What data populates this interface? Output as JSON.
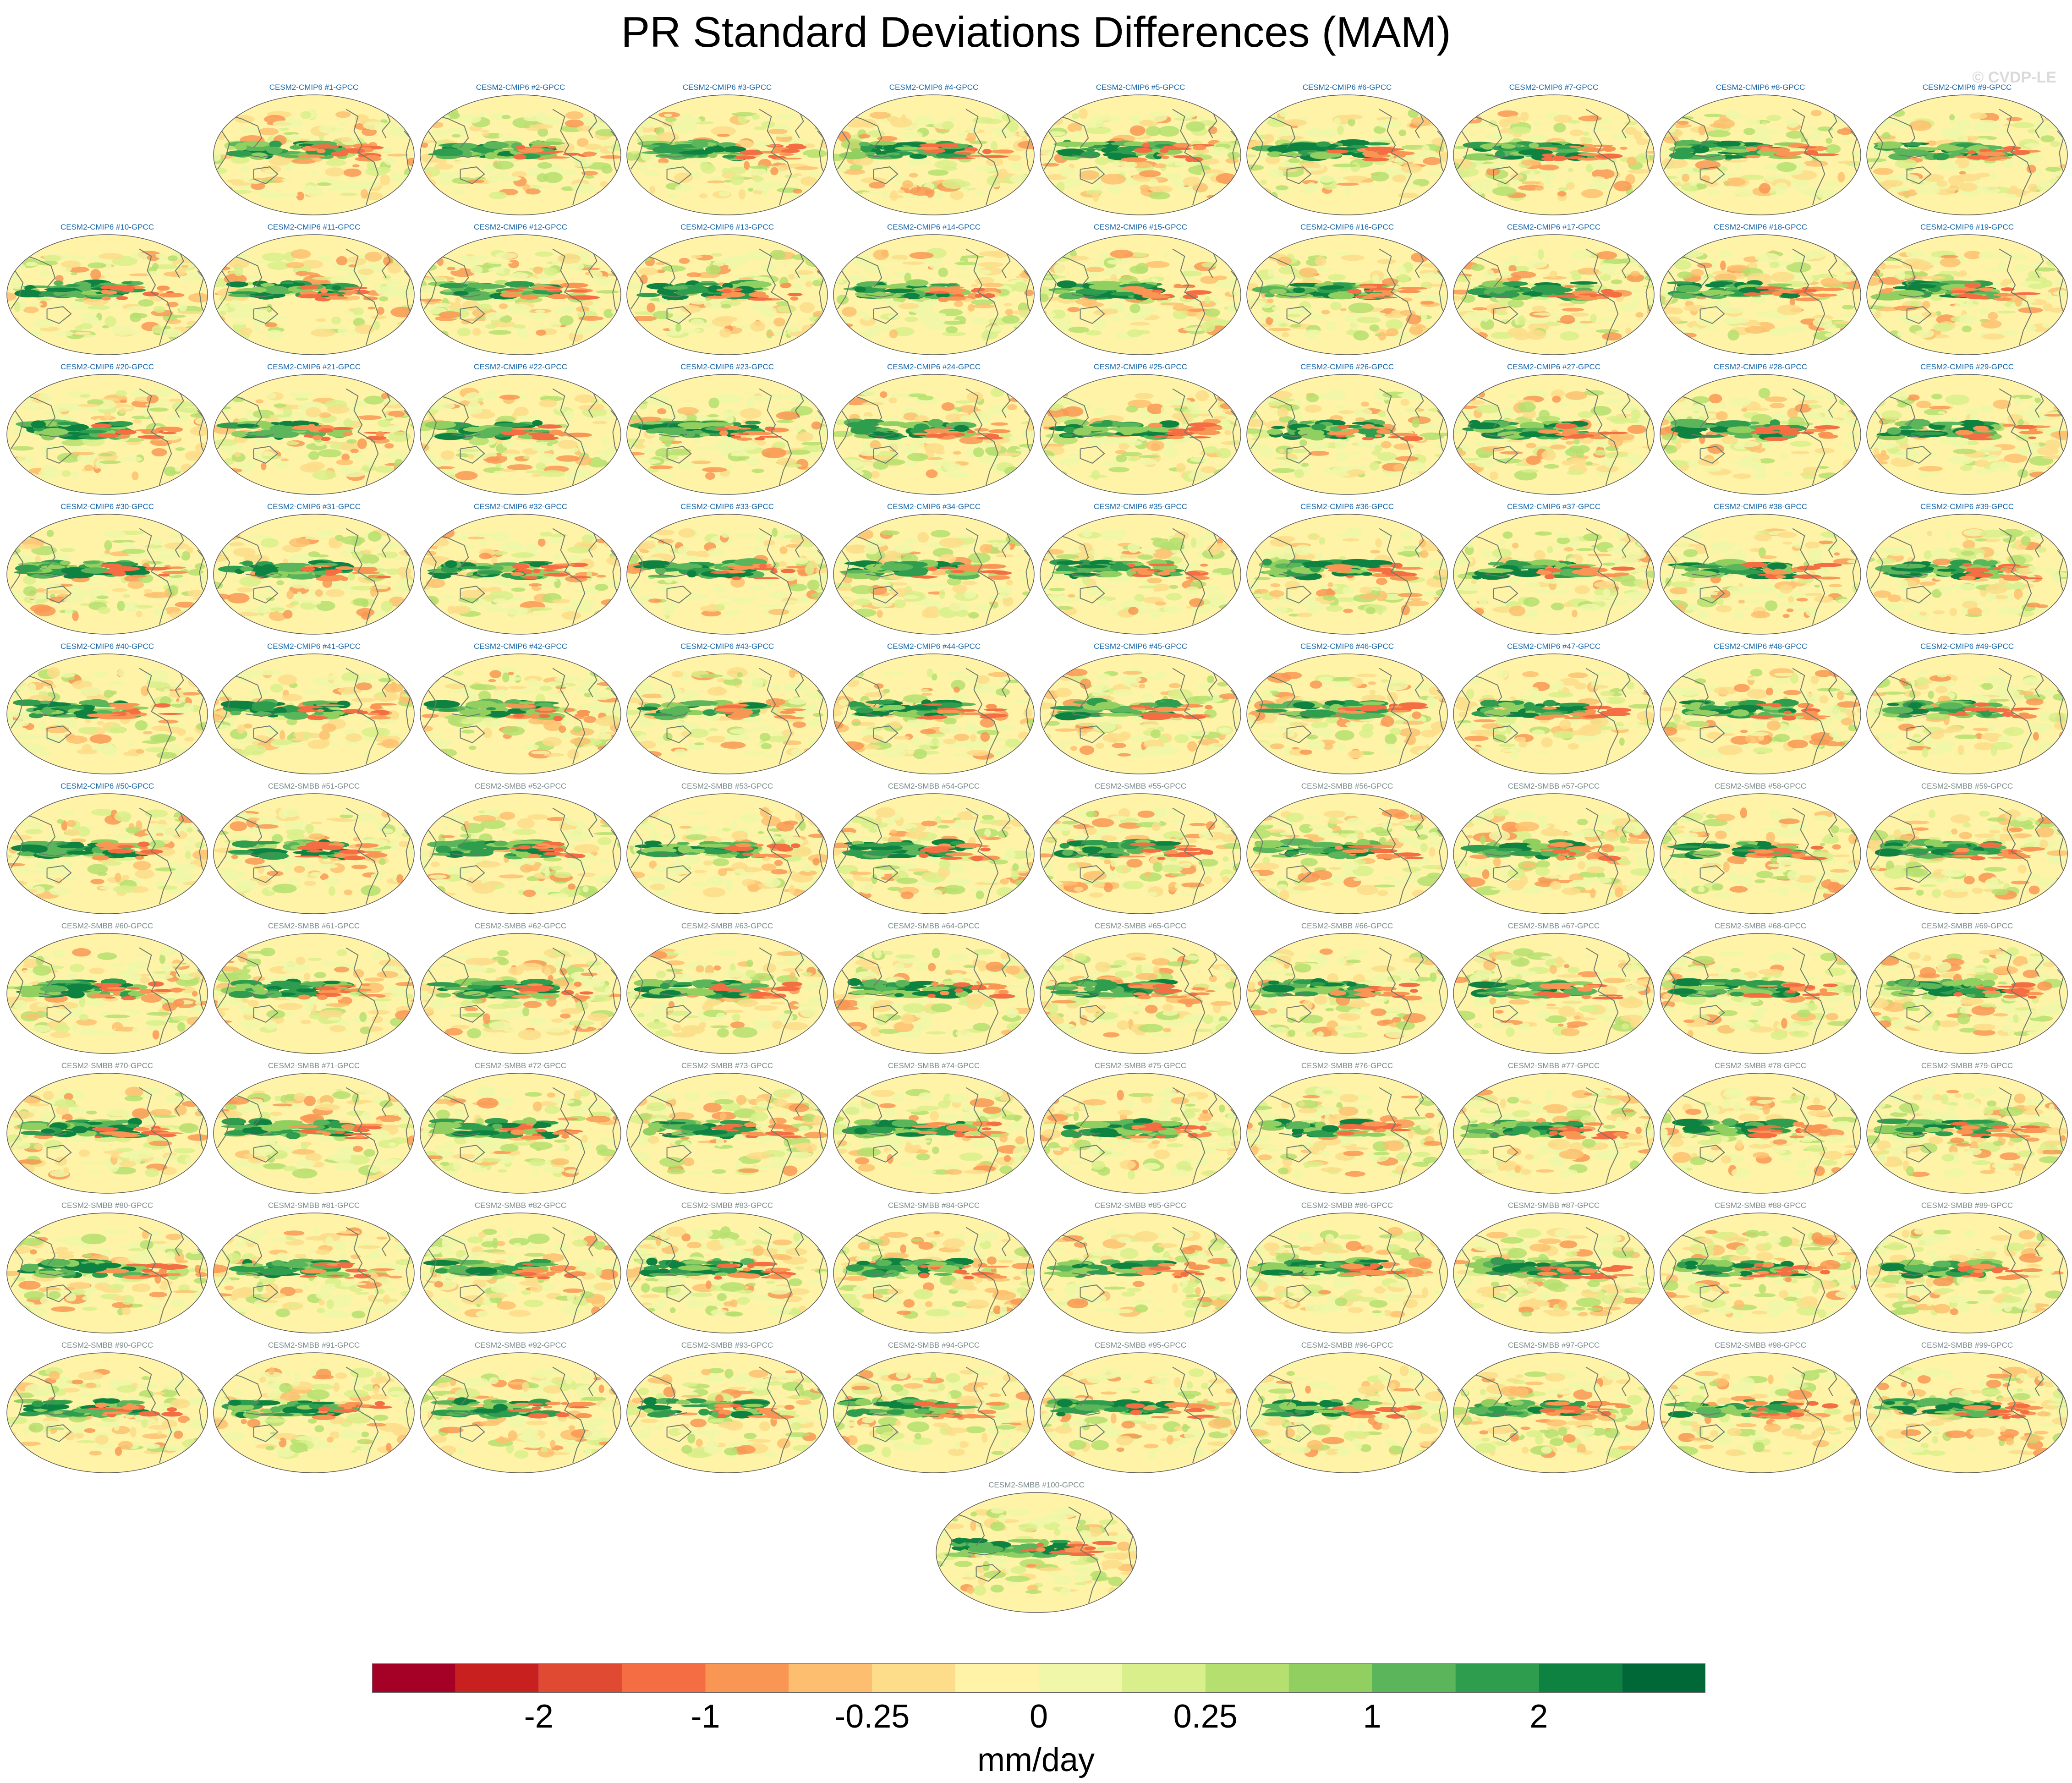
{
  "chart_data": {
    "type": "heatmap",
    "title": "PR Standard Deviations Differences (MAM)",
    "watermark": "© CVDP-LE",
    "projection": "global map (Robinson-like ellipse)",
    "panels": [
      {
        "label": "CESM2-CMIP6 #1-GPCC",
        "group": "CMIP6"
      },
      {
        "label": "CESM2-CMIP6 #2-GPCC",
        "group": "CMIP6"
      },
      {
        "label": "CESM2-CMIP6 #3-GPCC",
        "group": "CMIP6"
      },
      {
        "label": "CESM2-CMIP6 #4-GPCC",
        "group": "CMIP6"
      },
      {
        "label": "CESM2-CMIP6 #5-GPCC",
        "group": "CMIP6"
      },
      {
        "label": "CESM2-CMIP6 #6-GPCC",
        "group": "CMIP6"
      },
      {
        "label": "CESM2-CMIP6 #7-GPCC",
        "group": "CMIP6"
      },
      {
        "label": "CESM2-CMIP6 #8-GPCC",
        "group": "CMIP6"
      },
      {
        "label": "CESM2-CMIP6 #9-GPCC",
        "group": "CMIP6"
      },
      {
        "label": "CESM2-CMIP6 #10-GPCC",
        "group": "CMIP6"
      },
      {
        "label": "CESM2-CMIP6 #11-GPCC",
        "group": "CMIP6"
      },
      {
        "label": "CESM2-CMIP6 #12-GPCC",
        "group": "CMIP6"
      },
      {
        "label": "CESM2-CMIP6 #13-GPCC",
        "group": "CMIP6"
      },
      {
        "label": "CESM2-CMIP6 #14-GPCC",
        "group": "CMIP6"
      },
      {
        "label": "CESM2-CMIP6 #15-GPCC",
        "group": "CMIP6"
      },
      {
        "label": "CESM2-CMIP6 #16-GPCC",
        "group": "CMIP6"
      },
      {
        "label": "CESM2-CMIP6 #17-GPCC",
        "group": "CMIP6"
      },
      {
        "label": "CESM2-CMIP6 #18-GPCC",
        "group": "CMIP6"
      },
      {
        "label": "CESM2-CMIP6 #19-GPCC",
        "group": "CMIP6"
      },
      {
        "label": "CESM2-CMIP6 #20-GPCC",
        "group": "CMIP6"
      },
      {
        "label": "CESM2-CMIP6 #21-GPCC",
        "group": "CMIP6"
      },
      {
        "label": "CESM2-CMIP6 #22-GPCC",
        "group": "CMIP6"
      },
      {
        "label": "CESM2-CMIP6 #23-GPCC",
        "group": "CMIP6"
      },
      {
        "label": "CESM2-CMIP6 #24-GPCC",
        "group": "CMIP6"
      },
      {
        "label": "CESM2-CMIP6 #25-GPCC",
        "group": "CMIP6"
      },
      {
        "label": "CESM2-CMIP6 #26-GPCC",
        "group": "CMIP6"
      },
      {
        "label": "CESM2-CMIP6 #27-GPCC",
        "group": "CMIP6"
      },
      {
        "label": "CESM2-CMIP6 #28-GPCC",
        "group": "CMIP6"
      },
      {
        "label": "CESM2-CMIP6 #29-GPCC",
        "group": "CMIP6"
      },
      {
        "label": "CESM2-CMIP6 #30-GPCC",
        "group": "CMIP6"
      },
      {
        "label": "CESM2-CMIP6 #31-GPCC",
        "group": "CMIP6"
      },
      {
        "label": "CESM2-CMIP6 #32-GPCC",
        "group": "CMIP6"
      },
      {
        "label": "CESM2-CMIP6 #33-GPCC",
        "group": "CMIP6"
      },
      {
        "label": "CESM2-CMIP6 #34-GPCC",
        "group": "CMIP6"
      },
      {
        "label": "CESM2-CMIP6 #35-GPCC",
        "group": "CMIP6"
      },
      {
        "label": "CESM2-CMIP6 #36-GPCC",
        "group": "CMIP6"
      },
      {
        "label": "CESM2-CMIP6 #37-GPCC",
        "group": "CMIP6"
      },
      {
        "label": "CESM2-CMIP6 #38-GPCC",
        "group": "CMIP6"
      },
      {
        "label": "CESM2-CMIP6 #39-GPCC",
        "group": "CMIP6"
      },
      {
        "label": "CESM2-CMIP6 #40-GPCC",
        "group": "CMIP6"
      },
      {
        "label": "CESM2-CMIP6 #41-GPCC",
        "group": "CMIP6"
      },
      {
        "label": "CESM2-CMIP6 #42-GPCC",
        "group": "CMIP6"
      },
      {
        "label": "CESM2-CMIP6 #43-GPCC",
        "group": "CMIP6"
      },
      {
        "label": "CESM2-CMIP6 #44-GPCC",
        "group": "CMIP6"
      },
      {
        "label": "CESM2-CMIP6 #45-GPCC",
        "group": "CMIP6"
      },
      {
        "label": "CESM2-CMIP6 #46-GPCC",
        "group": "CMIP6"
      },
      {
        "label": "CESM2-CMIP6 #47-GPCC",
        "group": "CMIP6"
      },
      {
        "label": "CESM2-CMIP6 #48-GPCC",
        "group": "CMIP6"
      },
      {
        "label": "CESM2-CMIP6 #49-GPCC",
        "group": "CMIP6"
      },
      {
        "label": "CESM2-CMIP6 #50-GPCC",
        "group": "CMIP6"
      },
      {
        "label": "CESM2-SMBB #51-GPCC",
        "group": "SMBB"
      },
      {
        "label": "CESM2-SMBB #52-GPCC",
        "group": "SMBB"
      },
      {
        "label": "CESM2-SMBB #53-GPCC",
        "group": "SMBB"
      },
      {
        "label": "CESM2-SMBB #54-GPCC",
        "group": "SMBB"
      },
      {
        "label": "CESM2-SMBB #55-GPCC",
        "group": "SMBB"
      },
      {
        "label": "CESM2-SMBB #56-GPCC",
        "group": "SMBB"
      },
      {
        "label": "CESM2-SMBB #57-GPCC",
        "group": "SMBB"
      },
      {
        "label": "CESM2-SMBB #58-GPCC",
        "group": "SMBB"
      },
      {
        "label": "CESM2-SMBB #59-GPCC",
        "group": "SMBB"
      },
      {
        "label": "CESM2-SMBB #60-GPCC",
        "group": "SMBB"
      },
      {
        "label": "CESM2-SMBB #61-GPCC",
        "group": "SMBB"
      },
      {
        "label": "CESM2-SMBB #62-GPCC",
        "group": "SMBB"
      },
      {
        "label": "CESM2-SMBB #63-GPCC",
        "group": "SMBB"
      },
      {
        "label": "CESM2-SMBB #64-GPCC",
        "group": "SMBB"
      },
      {
        "label": "CESM2-SMBB #65-GPCC",
        "group": "SMBB"
      },
      {
        "label": "CESM2-SMBB #66-GPCC",
        "group": "SMBB"
      },
      {
        "label": "CESM2-SMBB #67-GPCC",
        "group": "SMBB"
      },
      {
        "label": "CESM2-SMBB #68-GPCC",
        "group": "SMBB"
      },
      {
        "label": "CESM2-SMBB #69-GPCC",
        "group": "SMBB"
      },
      {
        "label": "CESM2-SMBB #70-GPCC",
        "group": "SMBB"
      },
      {
        "label": "CESM2-SMBB #71-GPCC",
        "group": "SMBB"
      },
      {
        "label": "CESM2-SMBB #72-GPCC",
        "group": "SMBB"
      },
      {
        "label": "CESM2-SMBB #73-GPCC",
        "group": "SMBB"
      },
      {
        "label": "CESM2-SMBB #74-GPCC",
        "group": "SMBB"
      },
      {
        "label": "CESM2-SMBB #75-GPCC",
        "group": "SMBB"
      },
      {
        "label": "CESM2-SMBB #76-GPCC",
        "group": "SMBB"
      },
      {
        "label": "CESM2-SMBB #77-GPCC",
        "group": "SMBB"
      },
      {
        "label": "CESM2-SMBB #78-GPCC",
        "group": "SMBB"
      },
      {
        "label": "CESM2-SMBB #79-GPCC",
        "group": "SMBB"
      },
      {
        "label": "CESM2-SMBB #80-GPCC",
        "group": "SMBB"
      },
      {
        "label": "CESM2-SMBB #81-GPCC",
        "group": "SMBB"
      },
      {
        "label": "CESM2-SMBB #82-GPCC",
        "group": "SMBB"
      },
      {
        "label": "CESM2-SMBB #83-GPCC",
        "group": "SMBB"
      },
      {
        "label": "CESM2-SMBB #84-GPCC",
        "group": "SMBB"
      },
      {
        "label": "CESM2-SMBB #85-GPCC",
        "group": "SMBB"
      },
      {
        "label": "CESM2-SMBB #86-GPCC",
        "group": "SMBB"
      },
      {
        "label": "CESM2-SMBB #87-GPCC",
        "group": "SMBB"
      },
      {
        "label": "CESM2-SMBB #88-GPCC",
        "group": "SMBB"
      },
      {
        "label": "CESM2-SMBB #89-GPCC",
        "group": "SMBB"
      },
      {
        "label": "CESM2-SMBB #90-GPCC",
        "group": "SMBB"
      },
      {
        "label": "CESM2-SMBB #91-GPCC",
        "group": "SMBB"
      },
      {
        "label": "CESM2-SMBB #92-GPCC",
        "group": "SMBB"
      },
      {
        "label": "CESM2-SMBB #93-GPCC",
        "group": "SMBB"
      },
      {
        "label": "CESM2-SMBB #94-GPCC",
        "group": "SMBB"
      },
      {
        "label": "CESM2-SMBB #95-GPCC",
        "group": "SMBB"
      },
      {
        "label": "CESM2-SMBB #96-GPCC",
        "group": "SMBB"
      },
      {
        "label": "CESM2-SMBB #97-GPCC",
        "group": "SMBB"
      },
      {
        "label": "CESM2-SMBB #98-GPCC",
        "group": "SMBB"
      },
      {
        "label": "CESM2-SMBB #99-GPCC",
        "group": "SMBB"
      },
      {
        "label": "CESM2-SMBB #100-GPCC",
        "group": "SMBB"
      }
    ],
    "group_label_colors": {
      "CMIP6": "#1565a8",
      "SMBB": "#7a8a8a"
    },
    "colorbar": {
      "units": "mm/day",
      "colors": [
        "#a50026",
        "#c7201f",
        "#e04a33",
        "#f46d43",
        "#f99654",
        "#fdbf6f",
        "#fddc8a",
        "#fff3a8",
        "#f0f7a8",
        "#d9ef8b",
        "#b5df6e",
        "#91cf60",
        "#5bb55a",
        "#2f9d4e",
        "#0e8341",
        "#006837"
      ],
      "tick_labels": [
        "-2",
        "-1",
        "-0.25",
        "0",
        "0.25",
        "1",
        "2"
      ],
      "tick_boundaries": [
        2,
        4,
        6,
        8,
        10,
        12,
        14
      ]
    },
    "colors": {
      "land_outline": "#6b7b6b",
      "panel_outline": "#5a5a5a",
      "background_field": "#fff3a8"
    }
  }
}
